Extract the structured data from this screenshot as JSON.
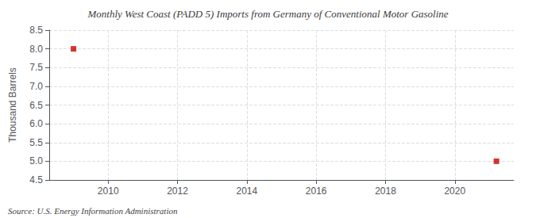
{
  "chart_data": {
    "type": "scatter",
    "title": "Monthly West Coast (PADD 5) Imports from Germany of Conventional Motor Gasoline",
    "ylabel": "Thousand Barrels",
    "source": "Source: U.S. Energy Information Administration",
    "x": [
      2009.0,
      2021.2
    ],
    "values": [
      8.0,
      5.0
    ],
    "color": "#cc0000",
    "marker": "square",
    "xlim": [
      2008.3,
      2021.7
    ],
    "xticks": [
      2010,
      2012,
      2014,
      2016,
      2018,
      2020
    ],
    "ylim": [
      4.5,
      8.5
    ],
    "yticks": [
      4.5,
      {
        "value": 5,
        "label": "5.0"
      },
      5.5,
      {
        "value": 6,
        "label": "6.0"
      },
      6.5,
      {
        "value": 7,
        "label": "7.0"
      },
      7.5,
      {
        "value": 8,
        "label": "8.0"
      },
      8.5
    ],
    "grid": true
  }
}
